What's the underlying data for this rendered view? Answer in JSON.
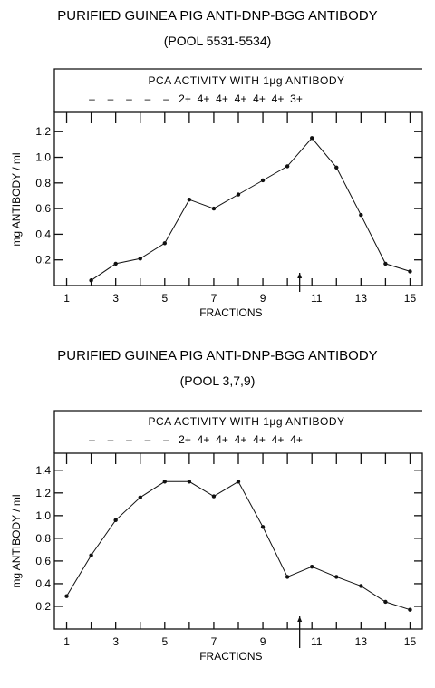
{
  "chart_data": [
    {
      "type": "line",
      "title": "PURIFIED GUINEA PIG ANTI-DNP-BGG ANTIBODY",
      "subtitle": "(POOL 5531-5534)",
      "header_label": "PCA  ACTIVITY WITH 1μg ANTIBODY",
      "activity_scores": [
        "–",
        "–",
        "–",
        "–",
        "–",
        "2+",
        "4+",
        "4+",
        "4+",
        "4+",
        "4+",
        "3+"
      ],
      "xlabel": "FRACTIONS",
      "ylabel": "mg ANTIBODY / ml",
      "x_ticks": [
        "1",
        "3",
        "5",
        "7",
        "9",
        "11",
        "13",
        "15"
      ],
      "y_ticks": [
        "0.2",
        "0.4",
        "0.6",
        "0.8",
        "1.0",
        "1.2"
      ],
      "marker_fraction": 10.5,
      "xlim": [
        0.5,
        15.5
      ],
      "ylim": [
        0,
        1.35
      ],
      "x": [
        2,
        3,
        4,
        5,
        6,
        7,
        8,
        9,
        10,
        11,
        12,
        13,
        14,
        15
      ],
      "values": [
        0.04,
        0.17,
        0.21,
        0.33,
        0.67,
        0.6,
        0.71,
        0.82,
        0.93,
        1.15,
        0.92,
        0.55,
        0.17,
        0.11
      ],
      "grid": false
    },
    {
      "type": "line",
      "title": "PURIFIED GUINEA PIG ANTI-DNP-BGG ANTIBODY",
      "subtitle": "(POOL 3,7,9)",
      "header_label": "PCA  ACTIVITY WITH 1μg ANTIBODY",
      "activity_scores": [
        "–",
        "–",
        "–",
        "–",
        "–",
        "2+",
        "4+",
        "4+",
        "4+",
        "4+",
        "4+",
        "4+"
      ],
      "xlabel": "FRACTIONS",
      "ylabel": "mg ANTIBODY / ml",
      "x_ticks": [
        "1",
        "3",
        "5",
        "7",
        "9",
        "11",
        "13",
        "15"
      ],
      "y_ticks": [
        "0.2",
        "0.4",
        "0.6",
        "0.8",
        "1.0",
        "1.2",
        "1.4"
      ],
      "marker_fraction": 10.5,
      "xlim": [
        0.5,
        15.5
      ],
      "ylim": [
        0,
        1.55
      ],
      "x": [
        1,
        2,
        3,
        4,
        5,
        6,
        7,
        8,
        9,
        10,
        11,
        12,
        13,
        14,
        15
      ],
      "values": [
        0.29,
        0.65,
        0.96,
        1.16,
        1.3,
        1.3,
        1.17,
        1.3,
        0.9,
        0.46,
        0.55,
        0.46,
        0.38,
        0.24,
        0.17
      ],
      "grid": false
    }
  ]
}
